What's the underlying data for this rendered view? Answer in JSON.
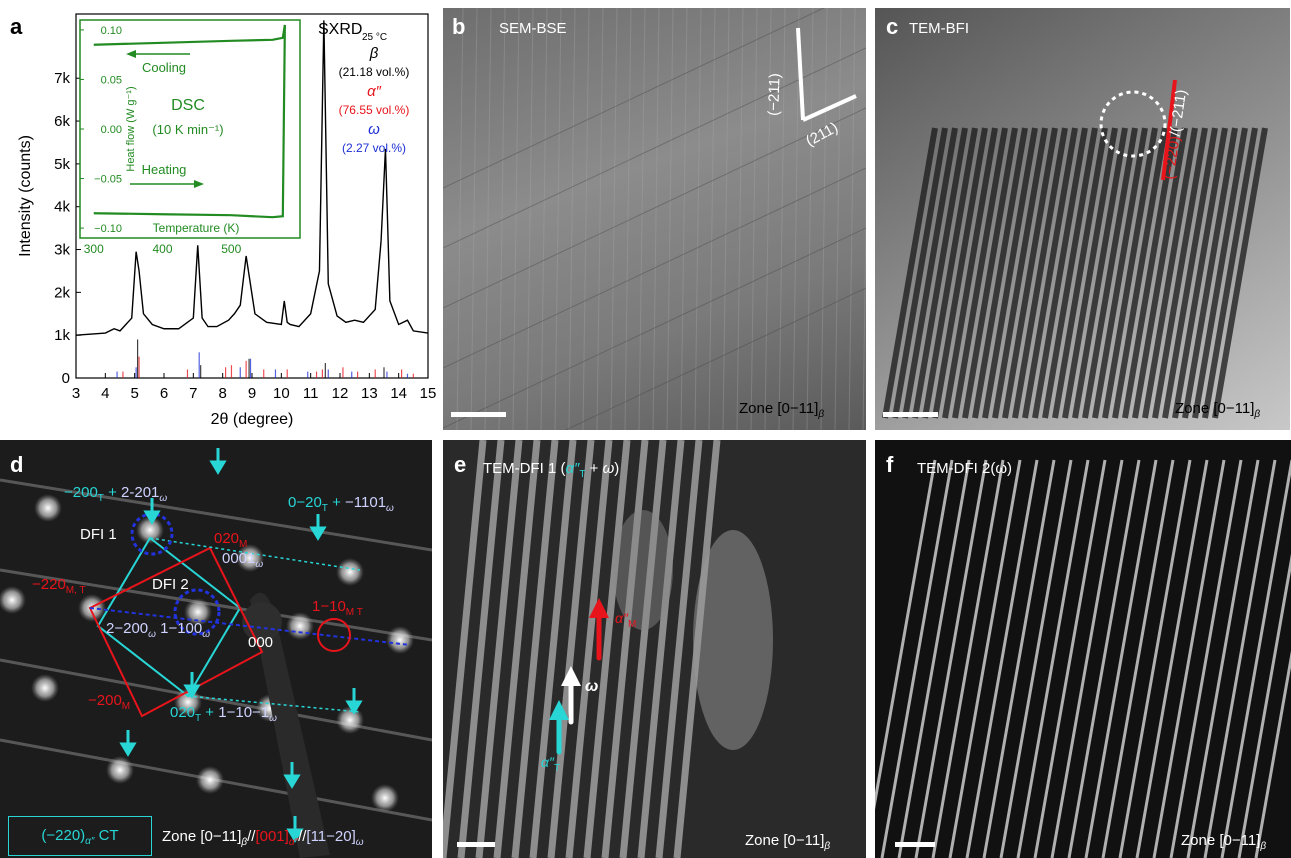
{
  "panels": {
    "a": {
      "label": "a",
      "ylabel": "Intensity (counts)",
      "xlabel": "2θ (degree)",
      "title": "SXRD",
      "title_sub": "25 °C",
      "phases": [
        {
          "name": "β",
          "fraction": "(21.18 vol.%)",
          "color": "#000000"
        },
        {
          "name": "α″",
          "fraction": "(76.55 vol.%)",
          "color": "#e8141b"
        },
        {
          "name": "ω",
          "fraction": "(2.27 vol.%)",
          "color": "#1c2fd6"
        }
      ],
      "inset": {
        "ylabel": "Heat flow (W g⁻¹)",
        "xlabel": "Temperature (K)",
        "title": "DSC",
        "rate": "(10 K min⁻¹)",
        "cooling": "Cooling",
        "heating": "Heating",
        "color": "#228b22"
      }
    },
    "b": {
      "label": "b",
      "title": "SEM-BSE",
      "zone": "Zone [0−11]",
      "zone_sub": "β",
      "dir1": "(−211)",
      "dir2": "(211)"
    },
    "c": {
      "label": "c",
      "title": "TEM-BFI",
      "zone": "Zone [0−11]",
      "zone_sub": "β",
      "plane_red": "(−220)",
      "plane_white": "/(−211)"
    },
    "d": {
      "label": "d",
      "zone_parts": [
        "Zone [0−11]",
        "β",
        "//",
        "[001]",
        "α″",
        "//",
        "[11−20]",
        "ω"
      ],
      "box_label": "(−220)",
      "box_sub": "α″",
      "box_suffix": " CT",
      "spots": {
        "dfi1": "DFI 1",
        "dfi2": "DFI 2",
        "origin": "000",
        "s200T": "−200",
        "s200T_sub": "T",
        "s200T_plus": " + ",
        "s2201w": "2-201",
        "w": "ω",
        "s020T": "0−20",
        "s020T_plus": " + ",
        "s1101w": "−1101",
        "s020M": "020",
        "s020M_sub": "M",
        "s0001w": "0001",
        "s220MT": "−220",
        "s220MT_sub": "M, T",
        "s110MT": "1−10",
        "s110MT_sub": "M T",
        "s2200w": "2−200",
        "s1100w": "1−100",
        "s200M": "−200",
        "s200M_sub": "M",
        "s020Tb": "020",
        "s020Tb_sub": "T",
        "s020Tb_plus": " + ",
        "s1101b": "1−10−1"
      }
    },
    "e": {
      "label": "e",
      "title": "TEM-DFI 1 (",
      "title_a": "α″",
      "title_a_sub": "T",
      "title_plus": " + ",
      "title_w": "ω",
      "title_end": ")",
      "arrow_M": "α″",
      "arrow_M_sub": "M",
      "arrow_w": "ω",
      "arrow_T": "α″",
      "arrow_T_sub": "T",
      "zone": "Zone [0−11]",
      "zone_sub": "β"
    },
    "f": {
      "label": "f",
      "title": "TEM-DFI 2(ω)",
      "zone": "Zone [0−11]",
      "zone_sub": "β"
    }
  },
  "chart_data": {
    "type": "line",
    "title": "SXRD 25 °C",
    "xlabel": "2θ (degree)",
    "ylabel": "Intensity (counts)",
    "xlim": [
      3,
      15
    ],
    "ylim": [
      0,
      8500
    ],
    "xticks": [
      "3",
      "4",
      "5",
      "6",
      "7",
      "8",
      "9",
      "10",
      "11",
      "12",
      "13",
      "14",
      "15"
    ],
    "yticks": [
      "0",
      "1k",
      "2k",
      "3k",
      "4k",
      "5k",
      "6k",
      "7k"
    ],
    "series": [
      {
        "x": [
          3.0,
          4.0,
          4.3,
          4.5,
          4.7,
          4.9,
          5.05,
          5.15,
          5.3,
          5.6,
          6.0,
          6.5,
          7.0,
          7.15,
          7.3,
          7.5,
          7.8,
          8.2,
          8.4,
          8.6,
          8.8,
          8.9,
          9.1,
          9.5,
          10.0,
          10.1,
          10.2,
          10.3,
          10.6,
          11.0,
          11.3,
          11.45,
          11.6,
          11.9,
          12.2,
          12.5,
          12.8,
          13.2,
          13.4,
          13.55,
          13.7,
          14.0,
          14.3,
          14.5,
          15.0
        ],
        "y": [
          1000,
          1050,
          1150,
          1100,
          1250,
          1400,
          2950,
          2500,
          1500,
          1250,
          1150,
          1150,
          1400,
          3100,
          1400,
          1200,
          1200,
          1350,
          1500,
          1700,
          2850,
          2400,
          1500,
          1300,
          1250,
          1800,
          1300,
          1250,
          1200,
          1500,
          2500,
          8350,
          2200,
          1450,
          1300,
          1350,
          1300,
          1600,
          3200,
          5350,
          1800,
          1250,
          1350,
          1100,
          1050
        ]
      },
      {
        "name": "β",
        "type": "stick",
        "x": [
          5.1,
          7.25,
          8.9,
          11.5,
          13.5
        ],
        "values": [
          900,
          300,
          450,
          350,
          250
        ]
      },
      {
        "name": "α″",
        "type": "stick",
        "x": [
          4.6,
          5.15,
          6.8,
          8.1,
          8.3,
          8.8,
          9.4,
          10.2,
          11.2,
          11.4,
          12.1,
          12.6,
          13.2,
          14.1,
          14.5
        ],
        "values": [
          150,
          500,
          200,
          250,
          300,
          400,
          200,
          200,
          150,
          200,
          250,
          150,
          200,
          200,
          100
        ]
      },
      {
        "name": "ω",
        "type": "stick",
        "x": [
          4.4,
          5.05,
          7.2,
          8.6,
          8.95,
          9.8,
          10.9,
          11.6,
          12.4,
          13.6,
          14.3
        ],
        "values": [
          150,
          250,
          600,
          250,
          450,
          200,
          150,
          200,
          150,
          150,
          100
        ]
      }
    ],
    "inset": {
      "type": "line",
      "title": "DSC",
      "xlabel": "Temperature (K)",
      "ylabel": "Heat flow (W g⁻¹)",
      "xlim": [
        280,
        600
      ],
      "ylim": [
        -0.11,
        0.11
      ],
      "xticks": [
        "300",
        "400",
        "500"
      ],
      "yticks": [
        "−0.10",
        "−0.05",
        "0.00",
        "0.05",
        "0.10"
      ],
      "series": [
        {
          "name": "Cooling",
          "x": [
            300,
            400,
            500,
            560,
            575,
            578
          ],
          "y": [
            0.085,
            0.087,
            0.089,
            0.09,
            0.092,
            0.105
          ]
        },
        {
          "name": "Heating",
          "x": [
            300,
            400,
            500,
            560,
            575,
            578
          ],
          "y": [
            -0.085,
            -0.086,
            -0.087,
            -0.089,
            -0.088,
            0.105
          ]
        }
      ]
    }
  }
}
